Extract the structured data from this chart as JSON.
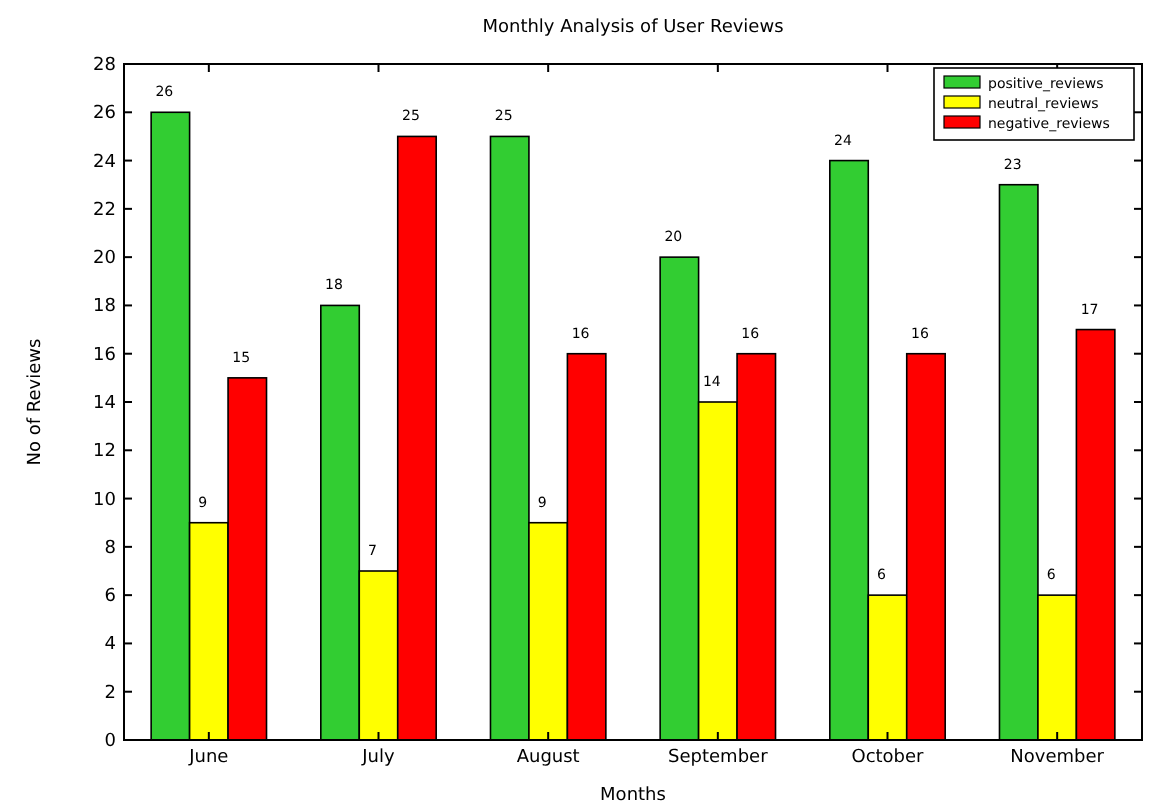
{
  "chart_data": {
    "type": "bar",
    "title": "Monthly Analysis of User Reviews",
    "xlabel": "Months",
    "ylabel": "No of Reviews",
    "categories": [
      "June",
      "July",
      "August",
      "September",
      "October",
      "November"
    ],
    "series": [
      {
        "name": "positive_reviews",
        "color": "#32cd32",
        "values": [
          26,
          18,
          25,
          20,
          24,
          23
        ]
      },
      {
        "name": "neutral_reviews",
        "color": "#ffff00",
        "values": [
          9,
          7,
          9,
          14,
          6,
          6
        ]
      },
      {
        "name": "negative_reviews",
        "color": "#ff0000",
        "values": [
          15,
          25,
          16,
          16,
          16,
          17
        ]
      }
    ],
    "ylim": [
      0,
      28
    ],
    "yticks": [
      0,
      2,
      4,
      6,
      8,
      10,
      12,
      14,
      16,
      18,
      20,
      22,
      24,
      26,
      28
    ],
    "data_labels": true,
    "legend": "top right",
    "grid": false
  }
}
